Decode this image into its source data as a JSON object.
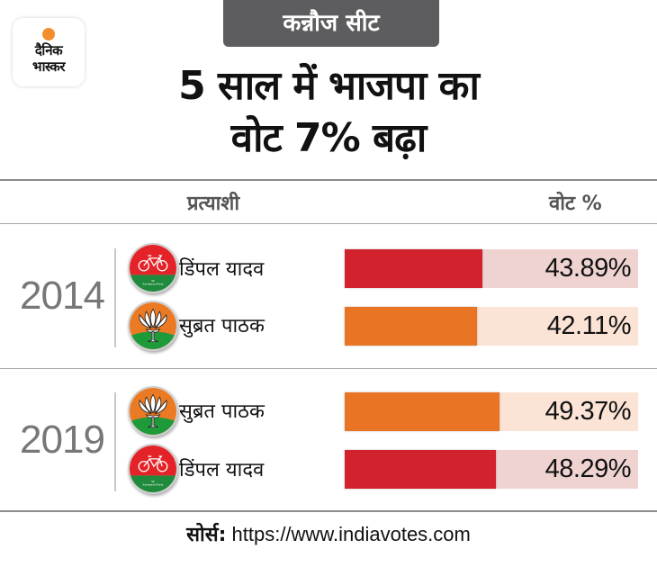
{
  "brand": {
    "line1": "दैनिक",
    "line2": "भास्कर",
    "accent_color": "#f28e2b"
  },
  "badge": {
    "label": "कन्नौज सीट",
    "bg_color": "#5d5c5e"
  },
  "title": {
    "line1": "5 साल में भाजपा का",
    "line2": "वोट 7% बढ़ा"
  },
  "columns": {
    "candidate": "प्रत्याशी",
    "vote": "वोट %"
  },
  "parties": {
    "SP": {
      "name": "Samajwadi Party",
      "symbol": "bicycle",
      "bar_color": "#d2222d",
      "track_color": "#eed3d1"
    },
    "BJP": {
      "name": "BJP",
      "symbol": "lotus",
      "bar_color": "#e87424",
      "track_color": "#fbe3d6"
    }
  },
  "chart_data": {
    "type": "bar",
    "title": "5 साल में भाजपा का वोट 7% बढ़ा",
    "xlabel": "वोट %",
    "ylabel": "प्रत्याशी",
    "unit": "%",
    "groups": [
      {
        "year": "2014",
        "rows": [
          {
            "candidate": "डिंपल यादव",
            "party": "SP",
            "value": 43.89,
            "label": "43.89%"
          },
          {
            "candidate": "सुब्रत पाठक",
            "party": "BJP",
            "value": 42.11,
            "label": "42.11%"
          }
        ]
      },
      {
        "year": "2019",
        "rows": [
          {
            "candidate": "सुब्रत पाठक",
            "party": "BJP",
            "value": 49.37,
            "label": "49.37%"
          },
          {
            "candidate": "डिंपल यादव",
            "party": "SP",
            "value": 48.29,
            "label": "48.29%"
          }
        ]
      }
    ]
  },
  "footer": {
    "source_label": "सोर्स:",
    "source_url": "https://www.indiavotes.com"
  }
}
